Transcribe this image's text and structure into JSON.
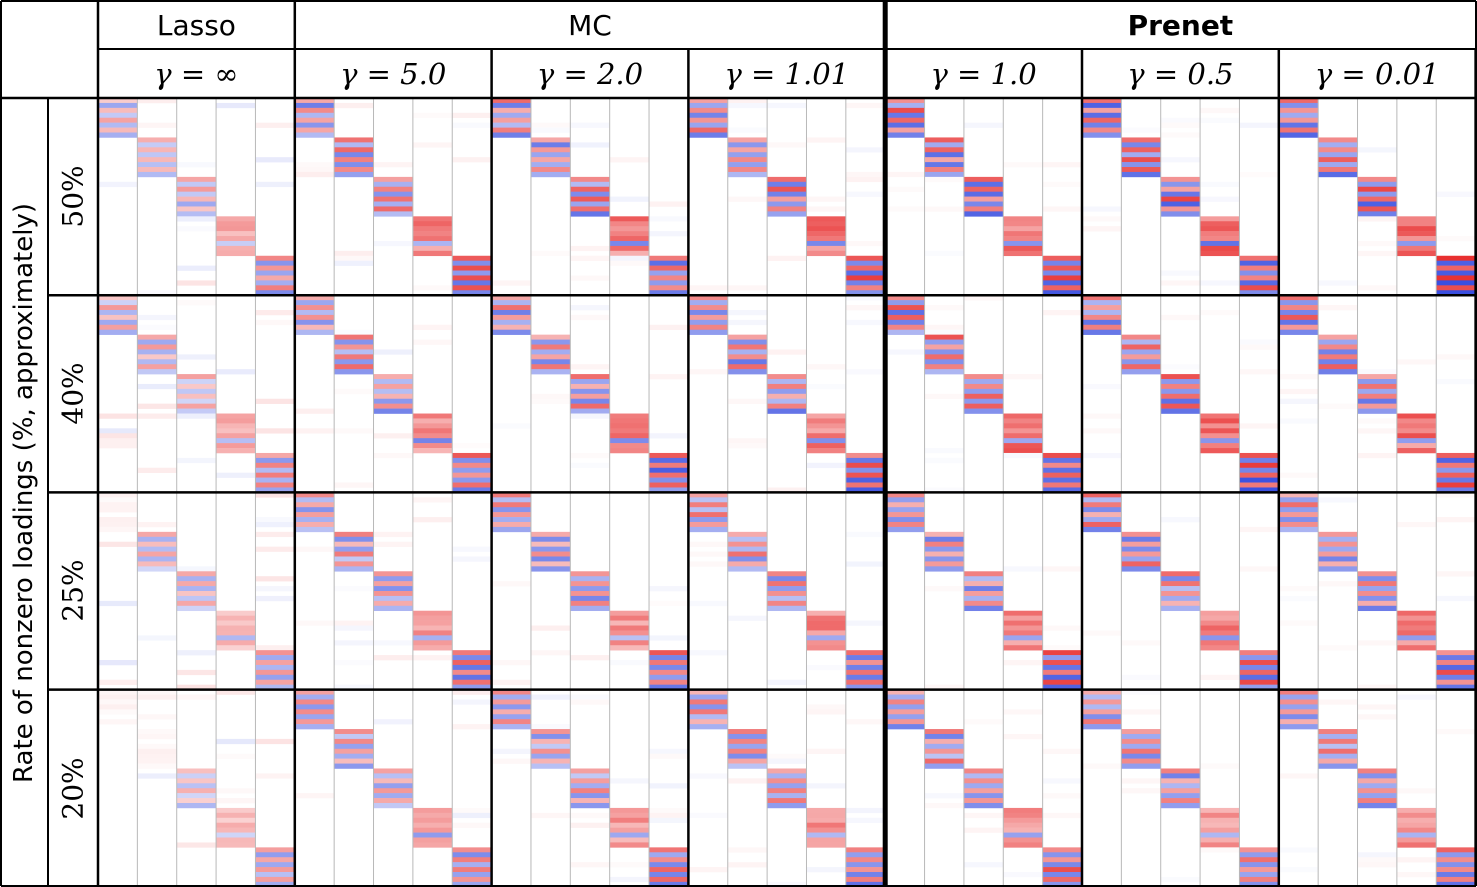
{
  "methods": [
    {
      "label": "Lasso",
      "bold": false,
      "span": 1
    },
    {
      "label": "MC",
      "bold": false,
      "span": 3
    },
    {
      "label": "Prenet",
      "bold": true,
      "span": 3
    }
  ],
  "gammas": [
    "γ = ∞",
    "γ = 5.0",
    "γ = 2.0",
    "γ = 1.01",
    "γ = 1.0",
    "γ = 0.5",
    "γ = 0.01"
  ],
  "y_axis_label": "Rate of nonzero loadings (%, approximately)",
  "rows": [
    "50%",
    "40%",
    "25%",
    "20%"
  ],
  "colors": {
    "positive": "#e83030",
    "negative": "#3a4fe0",
    "grid": "#b8b8b8",
    "border": "#000000"
  },
  "heatmap": {
    "factors": 5,
    "variables_per_block": 8
  }
}
